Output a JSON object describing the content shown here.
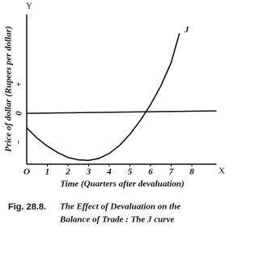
{
  "chart_data": {
    "type": "line",
    "y_axis_letter": "Y",
    "x_axis_letter": "X",
    "origin_label": "O",
    "x_label": "Time (Quarters after devaluation)",
    "y_label": "Price of dollar (Rupees per dollar)",
    "caption_label": "Fig. 28.8.",
    "caption": [
      "The Effect of Devaluation on the",
      "Balance of Trade : The J curve"
    ],
    "annotation": "J",
    "x": [
      0,
      0.5,
      1,
      1.5,
      2,
      2.5,
      3,
      3.5,
      4,
      4.5,
      5,
      5.5,
      6,
      6.5,
      7,
      7.4
    ],
    "values": [
      -0.5,
      -0.85,
      -1.13,
      -1.35,
      -1.52,
      -1.6,
      -1.62,
      -1.55,
      -1.38,
      -1.1,
      -0.72,
      -0.25,
      0.3,
      0.95,
      1.75,
      2.75
    ],
    "color": "#111111",
    "xlim": [
      0,
      9
    ],
    "xticks": [
      1,
      2,
      3,
      4,
      5,
      6,
      7,
      8
    ],
    "ylim": [
      -1.75,
      3.4
    ],
    "yticks": [
      {
        "value": 1,
        "label": "+"
      },
      0,
      {
        "value": -1,
        "label": "−"
      }
    ],
    "zero_line": true
  }
}
